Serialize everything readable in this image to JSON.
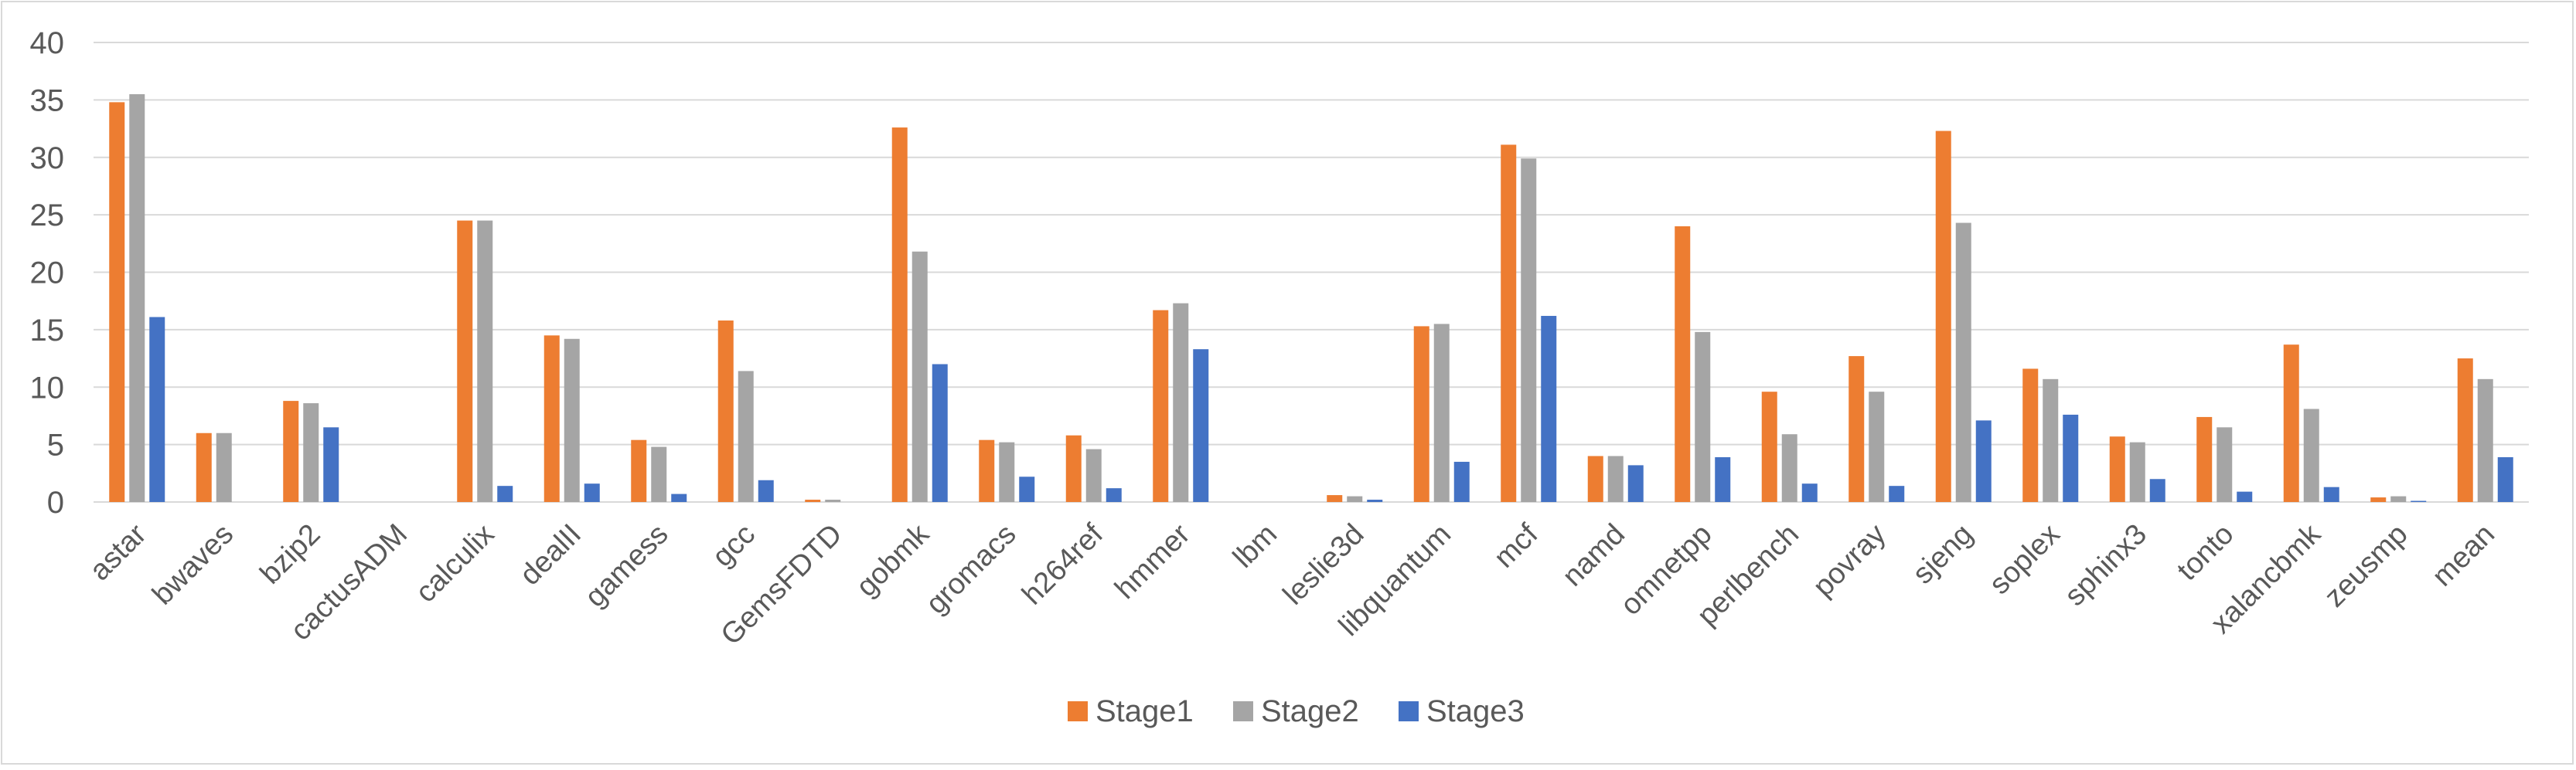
{
  "chart_data": {
    "type": "bar",
    "title": "",
    "xlabel": "",
    "ylabel": "",
    "ylim": [
      0,
      40
    ],
    "yticks": [
      "0",
      "5",
      "10",
      "15",
      "20",
      "25",
      "30",
      "35",
      "40"
    ],
    "grid": true,
    "legend_position": "bottom",
    "categories": [
      "astar",
      "bwaves",
      "bzip2",
      "cactusADM",
      "calculix",
      "dealII",
      "gamess",
      "gcc",
      "GemsFDTD",
      "gobmk",
      "gromacs",
      "h264ref",
      "hmmer",
      "lbm",
      "leslie3d",
      "libquantum",
      "mcf",
      "namd",
      "omnetpp",
      "perlbench",
      "povray",
      "sjeng",
      "soplex",
      "sphinx3",
      "tonto",
      "xalancbmk",
      "zeusmp",
      "mean"
    ],
    "series": [
      {
        "name": "Stage1",
        "color": "#ED7D31",
        "values": [
          34.8,
          6.0,
          8.8,
          0,
          24.5,
          14.5,
          5.4,
          15.8,
          0.2,
          32.6,
          5.4,
          5.8,
          16.7,
          0,
          0.6,
          15.3,
          31.1,
          4.0,
          24.0,
          9.6,
          12.7,
          32.3,
          11.6,
          5.7,
          7.4,
          13.7,
          0.4,
          12.5
        ]
      },
      {
        "name": "Stage2",
        "color": "#A5A5A5",
        "values": [
          35.5,
          6.0,
          8.6,
          0,
          24.5,
          14.2,
          4.8,
          11.4,
          0.2,
          21.8,
          5.2,
          4.6,
          17.3,
          0,
          0.5,
          15.5,
          29.9,
          4.0,
          14.8,
          5.9,
          9.6,
          24.3,
          10.7,
          5.2,
          6.5,
          8.1,
          0.5,
          10.7
        ]
      },
      {
        "name": "Stage3",
        "color": "#4472C4",
        "values": [
          16.1,
          0,
          6.5,
          0,
          1.4,
          1.6,
          0.7,
          1.9,
          0,
          12.0,
          2.2,
          1.2,
          13.3,
          0,
          0.2,
          3.5,
          16.2,
          3.2,
          3.9,
          1.6,
          1.4,
          7.1,
          7.6,
          2.0,
          0.9,
          1.3,
          0.1,
          3.9
        ]
      }
    ]
  }
}
